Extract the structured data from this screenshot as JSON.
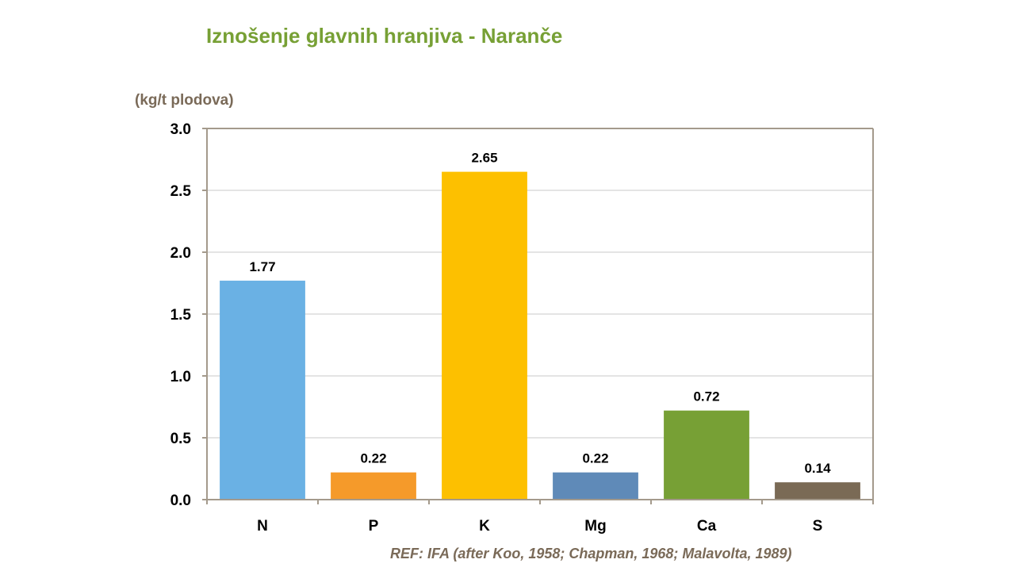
{
  "chart_data": {
    "type": "bar",
    "title": "Iznošenje glavnih hranjiva - Naranče",
    "ylabel": "(kg/t plodova)",
    "xlabel": "",
    "categories": [
      "N",
      "P",
      "K",
      "Mg",
      "Ca",
      "S"
    ],
    "values": [
      1.77,
      0.22,
      2.65,
      0.22,
      0.72,
      0.14
    ],
    "value_labels": [
      "1.77",
      "0.22",
      "2.65",
      "0.22",
      "0.72",
      "0.14"
    ],
    "bar_colors": [
      "#6ab1e4",
      "#f59a2a",
      "#fdc000",
      "#5f8ab8",
      "#77a035",
      "#7a6a55"
    ],
    "ylim": [
      0,
      3.0
    ],
    "yticks": [
      0,
      0.5,
      1.0,
      1.5,
      2.0,
      2.5,
      3.0
    ],
    "ytick_labels": [
      "0.0",
      "0.5",
      "1.0",
      "1.5",
      "2.0",
      "2.5",
      "3.0"
    ],
    "grid": true,
    "legend": "none",
    "reference": "REF: IFA (after Koo, 1958; Chapman, 1968; Malavolta, 1989)"
  },
  "colors": {
    "title": "#77a035",
    "muted_text": "#7a6a58",
    "axis": "#a49a8c",
    "grid": "#c8c8c8"
  }
}
